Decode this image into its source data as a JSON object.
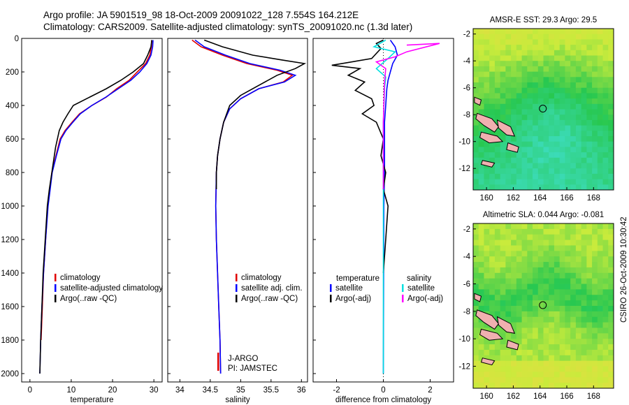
{
  "titles": {
    "line1": "Argo profile: JA 5901519_98 18-Oct-2009 20091022_128 7.554S 164.212E",
    "line2": "Climatology: CARS2009. Satellite-adjusted climatology: synTS_20091020.nc (1.3d later)"
  },
  "footer": {
    "credit": "CSIRO 26-Oct-2009 10:30:42"
  },
  "colors": {
    "climatology": "#e00000",
    "satellite": "#0000ff",
    "argo": "#000000",
    "salinity_satellite": "#00e0e0",
    "salinity_argo": "#ff00ff",
    "coast": "#000000",
    "land": "#f0b0b0"
  },
  "chart_data": [
    {
      "id": "temperature",
      "type": "line",
      "xlabel": "temperature",
      "xlim": [
        -2,
        32
      ],
      "ylim": [
        0,
        2050
      ],
      "y_reversed": true,
      "xticks": [
        0,
        10,
        20,
        30
      ],
      "yticks": [
        0,
        200,
        400,
        600,
        800,
        1000,
        1200,
        1400,
        1600,
        1800,
        2000
      ],
      "series": [
        {
          "name": "climatology",
          "color": "#e00000",
          "x": [
            29.5,
            29.4,
            29.0,
            28.0,
            26.0,
            24.0,
            21.0,
            18.5,
            15.0,
            12.0,
            10.2,
            8.5,
            7.3,
            6.3,
            5.3,
            4.8,
            4.3,
            3.8,
            3.3,
            3.0,
            2.7
          ],
          "y": [
            10,
            50,
            100,
            150,
            200,
            250,
            300,
            350,
            400,
            450,
            500,
            550,
            600,
            700,
            800,
            900,
            1000,
            1200,
            1400,
            1600,
            1800
          ]
        },
        {
          "name": "satellite-adjusted climatology",
          "color": "#0000ff",
          "x": [
            29.8,
            29.7,
            29.3,
            28.3,
            26.6,
            24.4,
            21.4,
            18.4,
            15.0,
            12.2,
            10.4,
            8.7,
            7.5,
            6.4,
            5.4,
            4.9,
            4.4,
            3.8,
            3.3,
            2.9,
            2.6,
            2.4
          ],
          "y": [
            10,
            50,
            100,
            150,
            200,
            250,
            300,
            350,
            400,
            450,
            500,
            550,
            600,
            700,
            800,
            900,
            1000,
            1200,
            1400,
            1600,
            1800,
            2000
          ]
        },
        {
          "name": "Argo(..raw -QC)",
          "color": "#000000",
          "x": [
            29.5,
            29.3,
            28.5,
            27.5,
            25.0,
            22.0,
            18.5,
            14.5,
            10.5,
            9.2,
            8.0,
            7.1,
            6.2,
            5.3,
            4.7,
            4.2,
            3.7,
            3.2,
            2.9,
            2.6,
            2.4
          ],
          "y": [
            10,
            50,
            100,
            150,
            200,
            250,
            300,
            350,
            400,
            450,
            500,
            550,
            650,
            800,
            900,
            1000,
            1200,
            1400,
            1600,
            1800,
            2000
          ]
        }
      ],
      "legend": {
        "placement": "lower-center",
        "entries": [
          "climatology",
          "satellite-adjusted climatology",
          "Argo(..raw -QC)"
        ]
      }
    },
    {
      "id": "salinity",
      "type": "line",
      "xlabel": "salinity",
      "xlim": [
        33.8,
        36.1
      ],
      "ylim": [
        0,
        2050
      ],
      "y_reversed": true,
      "xticks": [
        34,
        34.5,
        35,
        35.5,
        36
      ],
      "series": [
        {
          "name": "climatology",
          "color": "#e00000",
          "x": [
            34.2,
            34.35,
            34.7,
            35.1,
            35.6,
            35.85,
            35.7,
            35.3,
            35.0,
            34.82,
            34.72,
            34.66,
            34.62,
            34.6,
            34.59,
            34.6,
            34.62,
            34.64,
            34.66,
            34.67
          ],
          "y": [
            10,
            50,
            100,
            150,
            190,
            220,
            260,
            300,
            360,
            420,
            500,
            600,
            700,
            800,
            1000,
            1200,
            1400,
            1600,
            1800,
            2000
          ]
        },
        {
          "name": "satellite adj. clim.",
          "color": "#0000ff",
          "x": [
            34.25,
            34.4,
            34.75,
            35.15,
            35.65,
            35.9,
            35.72,
            35.3,
            35.0,
            34.82,
            34.72,
            34.66,
            34.62,
            34.6,
            34.59,
            34.6,
            34.62,
            34.64,
            34.66,
            34.67
          ],
          "y": [
            10,
            50,
            100,
            150,
            190,
            220,
            260,
            300,
            360,
            420,
            500,
            600,
            700,
            800,
            1000,
            1200,
            1400,
            1600,
            1800,
            2000
          ]
        },
        {
          "name": "Argo(..raw -QC)",
          "color": "#000000",
          "x": [
            34.4,
            34.7,
            35.2,
            35.7,
            36.05,
            35.9,
            35.6,
            35.3,
            35.0,
            34.82,
            34.72,
            34.66,
            34.62,
            34.6,
            34.6
          ],
          "y": [
            10,
            50,
            100,
            130,
            150,
            180,
            220,
            280,
            340,
            400,
            500,
            600,
            700,
            800,
            900
          ]
        }
      ],
      "legend": {
        "placement": "lower-center",
        "entries": [
          "climatology",
          "satellite adj. clim.",
          "Argo(..raw -QC)"
        ]
      },
      "annotations": [
        "J-ARGO",
        "PI: JAMSTEC"
      ]
    },
    {
      "id": "difference",
      "type": "line",
      "xlabel": "difference from climatology",
      "xlim": [
        -3.0,
        3.0
      ],
      "ylim": [
        0,
        2050
      ],
      "y_reversed": true,
      "xticks": [
        -2,
        0,
        2
      ],
      "series": [
        {
          "name": "temperature satellite",
          "color": "#0000ff",
          "x": [
            0.3,
            0.5,
            0.6,
            0.4,
            0.3,
            0.2,
            0.15,
            0.1,
            0.05,
            0.05,
            0.05,
            0.02,
            0.0
          ],
          "y": [
            10,
            50,
            100,
            150,
            200,
            250,
            300,
            400,
            500,
            600,
            800,
            1000,
            2000
          ]
        },
        {
          "name": "temperature Argo(-adj)",
          "color": "#000000",
          "x": [
            0.0,
            -0.3,
            -0.1,
            -0.5,
            -2.2,
            -1.0,
            -1.5,
            -0.8,
            -1.2,
            -0.5,
            -0.4,
            -0.9,
            -0.3,
            0.0,
            -0.1,
            0.1,
            0.0,
            0.2,
            0.1,
            0.0
          ],
          "y": [
            10,
            30,
            60,
            120,
            160,
            180,
            220,
            260,
            310,
            360,
            400,
            450,
            500,
            600,
            700,
            800,
            900,
            1000,
            1200,
            1400
          ]
        },
        {
          "name": "salinity satellite",
          "color": "#00e0e0",
          "x": [
            0.1,
            -0.4,
            0.5,
            0.2,
            -0.3,
            0.1,
            0.05,
            0.0,
            0.0,
            0.0,
            0.0
          ],
          "y": [
            10,
            50,
            80,
            120,
            180,
            230,
            300,
            500,
            800,
            1200,
            2000
          ]
        },
        {
          "name": "salinity Argo(-adj)",
          "color": "#ff00ff",
          "x": [
            1.0,
            2.4,
            1.0,
            0.5,
            -0.3,
            0.1,
            0.05,
            0.0,
            0.0
          ],
          "y": [
            40,
            30,
            80,
            110,
            140,
            180,
            260,
            500,
            900
          ]
        }
      ],
      "legend": {
        "placement": "lower-center",
        "groups": [
          {
            "heading": "temperature",
            "entries": [
              "satellite",
              "Argo(-adj)"
            ]
          },
          {
            "heading": "salinity",
            "entries": [
              "satellite",
              "Argo(-adj)"
            ]
          }
        ]
      }
    },
    {
      "id": "sst_map",
      "type": "heatmap",
      "title": "AMSR-E SST: 29.3 Argo: 29.5",
      "xlim": [
        159,
        169.5
      ],
      "ylim": [
        -13.6,
        -1.6
      ],
      "xticks": [
        160,
        162,
        164,
        166,
        168
      ],
      "yticks": [
        -2,
        -4,
        -6,
        -8,
        -10,
        -12
      ],
      "marker": {
        "lon": 164.21,
        "lat": -7.55
      }
    },
    {
      "id": "sla_map",
      "type": "heatmap",
      "title": "Altimetric SLA: 0.044 Argo: -0.081",
      "xlim": [
        159,
        169.5
      ],
      "ylim": [
        -13.6,
        -1.6
      ],
      "xticks": [
        160,
        162,
        164,
        166,
        168
      ],
      "yticks": [
        -2,
        -4,
        -6,
        -8,
        -10,
        -12
      ],
      "marker": {
        "lon": 164.21,
        "lat": -7.55
      }
    }
  ]
}
